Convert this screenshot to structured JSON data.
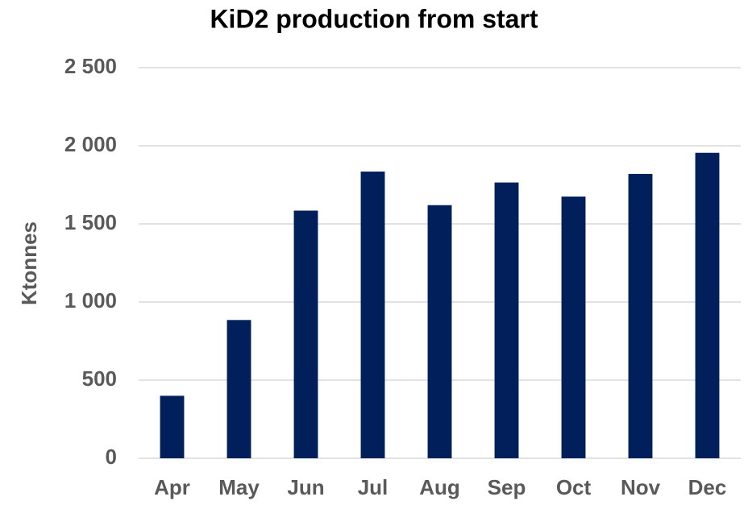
{
  "chart_data": {
    "type": "bar",
    "title": "KiD2 production from start",
    "y_label": "Ktonnes",
    "categories": [
      "Apr",
      "May",
      "Jun",
      "Jul",
      "Aug",
      "Sep",
      "Oct",
      "Nov",
      "Dec"
    ],
    "values": [
      400,
      885,
      1585,
      1835,
      1620,
      1765,
      1675,
      1820,
      1955
    ],
    "color": "#001f5b",
    "ylim": [
      0,
      2500
    ],
    "yticks": [
      0,
      500,
      {
        "value": 1000,
        "label": "1 000"
      },
      {
        "value": 1500,
        "label": "1 500"
      },
      {
        "value": 2000,
        "label": "2 000"
      },
      {
        "value": 2500,
        "label": "2 500"
      }
    ],
    "grid": true
  }
}
